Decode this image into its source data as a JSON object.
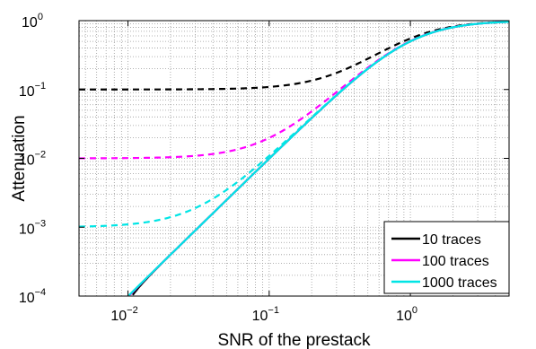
{
  "chart_data": {
    "type": "line",
    "title": "",
    "xlabel": "SNR of the prestack",
    "ylabel": "Attenuation",
    "x_scale": "log",
    "y_scale": "log",
    "xlim": [
      0.0045,
      5
    ],
    "ylim": [
      0.0001,
      1
    ],
    "grid": true,
    "legend_position": "bottom-right",
    "x_ticks": [
      {
        "value": 0.01,
        "base": "10",
        "exp": "−2"
      },
      {
        "value": 0.1,
        "base": "10",
        "exp": "−1"
      },
      {
        "value": 1,
        "base": "10",
        "exp": "0"
      }
    ],
    "y_ticks": [
      {
        "value": 0.0001,
        "base": "10",
        "exp": "−4"
      },
      {
        "value": 0.001,
        "base": "10",
        "exp": "−3"
      },
      {
        "value": 0.01,
        "base": "10",
        "exp": "−2"
      },
      {
        "value": 0.1,
        "base": "10",
        "exp": "−1"
      },
      {
        "value": 1,
        "base": "10",
        "exp": "0"
      }
    ],
    "series": [
      {
        "name": "10 traces",
        "color": "#000000",
        "n": 10
      },
      {
        "name": "100 traces",
        "color": "#ff00ff",
        "n": 100
      },
      {
        "name": "1000 traces",
        "color": "#00e5e5",
        "n": 1000
      }
    ]
  }
}
